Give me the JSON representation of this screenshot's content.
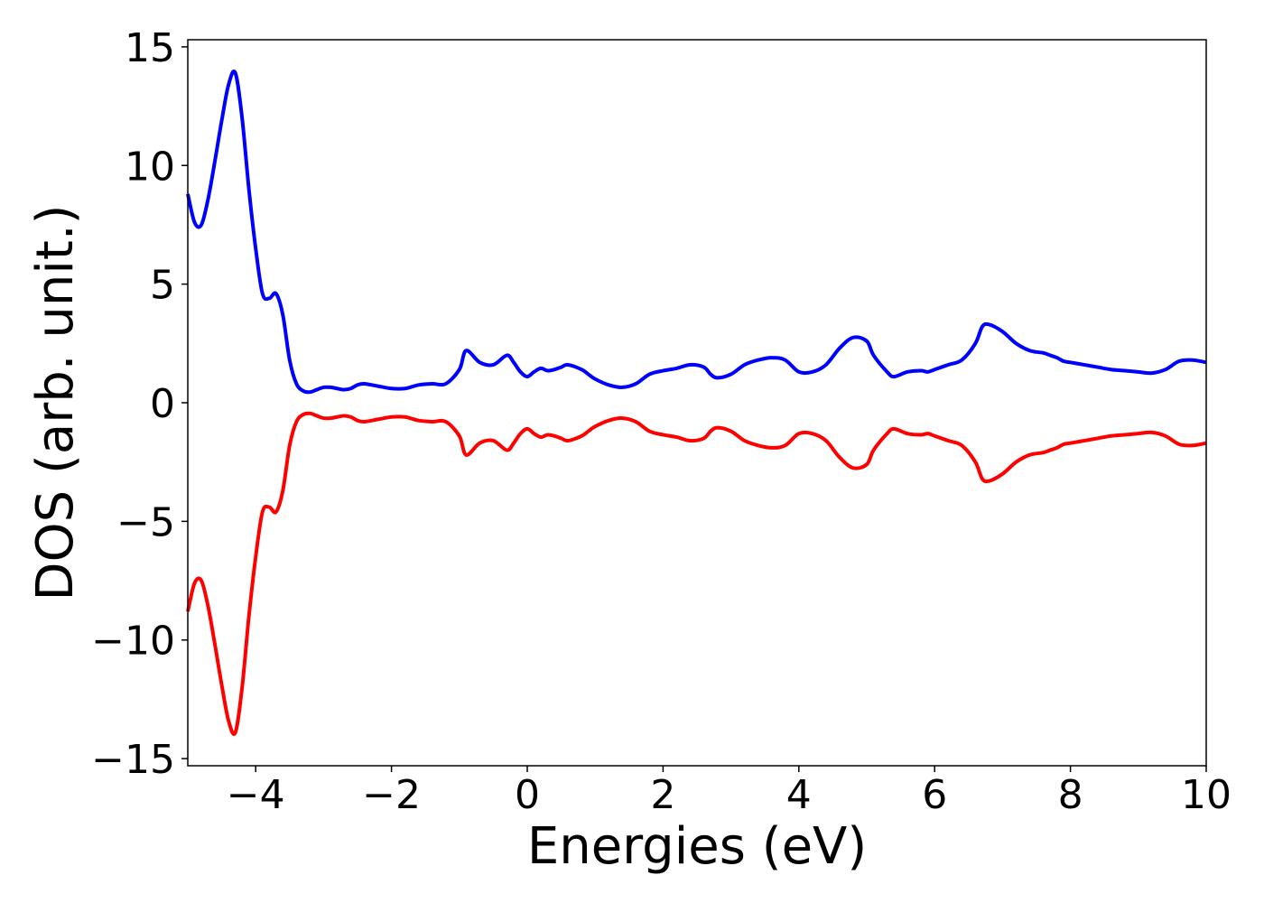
{
  "chart_data": {
    "type": "line",
    "title": "",
    "xlabel": "Energies (eV)",
    "ylabel": "DOS (arb. unit.)",
    "xlim": [
      -5,
      10
    ],
    "ylim": [
      -15.3,
      15.3
    ],
    "grid": false,
    "legend": "none",
    "xticks": [
      -4,
      -2,
      0,
      2,
      4,
      6,
      8,
      10
    ],
    "xtick_labels": [
      "−4",
      "−2",
      "0",
      "2",
      "4",
      "6",
      "8",
      "10"
    ],
    "yticks": [
      15,
      10,
      5,
      0,
      -5,
      -10,
      -15
    ],
    "ytick_labels": [
      "15",
      "10",
      "5",
      "0",
      "−5",
      "−10",
      "−15"
    ],
    "series": [
      {
        "color": "#0000ff",
        "x": [
          -5.0,
          -4.9,
          -4.8,
          -4.7,
          -4.6,
          -4.5,
          -4.4,
          -4.3,
          -4.2,
          -4.1,
          -4.0,
          -3.9,
          -3.8,
          -3.7,
          -3.6,
          -3.5,
          -3.4,
          -3.3,
          -3.2,
          -3.1,
          -3.0,
          -2.9,
          -2.8,
          -2.7,
          -2.6,
          -2.5,
          -2.4,
          -2.2,
          -2.0,
          -1.8,
          -1.6,
          -1.4,
          -1.2,
          -1.0,
          -0.9,
          -0.7,
          -0.5,
          -0.3,
          -0.2,
          -0.1,
          0.0,
          0.1,
          0.2,
          0.3,
          0.4,
          0.5,
          0.6,
          0.8,
          0.9,
          1.0,
          1.2,
          1.4,
          1.6,
          1.8,
          2.0,
          2.2,
          2.4,
          2.6,
          2.7,
          2.8,
          3.0,
          3.2,
          3.4,
          3.6,
          3.8,
          4.0,
          4.2,
          4.4,
          4.6,
          4.8,
          5.0,
          5.1,
          5.3,
          5.4,
          5.6,
          5.8,
          5.9,
          6.0,
          6.2,
          6.4,
          6.6,
          6.7,
          6.8,
          7.0,
          7.2,
          7.4,
          7.6,
          7.7,
          7.8,
          7.9,
          8.0,
          8.2,
          8.4,
          8.6,
          8.8,
          9.0,
          9.2,
          9.4,
          9.6,
          9.8,
          10.0
        ],
        "values": [
          8.8,
          7.6,
          7.5,
          8.6,
          10.2,
          11.9,
          13.4,
          13.9,
          12.0,
          9.0,
          6.5,
          4.6,
          4.4,
          4.6,
          3.7,
          1.8,
          0.8,
          0.5,
          0.45,
          0.55,
          0.65,
          0.65,
          0.6,
          0.55,
          0.6,
          0.75,
          0.8,
          0.7,
          0.6,
          0.6,
          0.75,
          0.8,
          0.8,
          1.4,
          2.2,
          1.7,
          1.6,
          2.0,
          1.7,
          1.3,
          1.1,
          1.3,
          1.45,
          1.35,
          1.4,
          1.5,
          1.6,
          1.4,
          1.2,
          1.0,
          0.75,
          0.65,
          0.8,
          1.2,
          1.35,
          1.45,
          1.6,
          1.5,
          1.2,
          1.05,
          1.2,
          1.6,
          1.8,
          1.9,
          1.8,
          1.3,
          1.3,
          1.6,
          2.3,
          2.75,
          2.6,
          2.0,
          1.3,
          1.1,
          1.3,
          1.35,
          1.3,
          1.4,
          1.6,
          1.8,
          2.5,
          3.2,
          3.3,
          3.0,
          2.5,
          2.2,
          2.1,
          2.0,
          1.9,
          1.75,
          1.7,
          1.6,
          1.5,
          1.4,
          1.35,
          1.3,
          1.25,
          1.4,
          1.75,
          1.8,
          1.7
        ]
      },
      {
        "color": "#ff0000",
        "x": [
          -5.0,
          -4.9,
          -4.8,
          -4.7,
          -4.6,
          -4.5,
          -4.4,
          -4.3,
          -4.2,
          -4.1,
          -4.0,
          -3.9,
          -3.8,
          -3.7,
          -3.6,
          -3.5,
          -3.4,
          -3.3,
          -3.2,
          -3.1,
          -3.0,
          -2.9,
          -2.8,
          -2.7,
          -2.6,
          -2.5,
          -2.4,
          -2.2,
          -2.0,
          -1.8,
          -1.6,
          -1.4,
          -1.2,
          -1.0,
          -0.9,
          -0.7,
          -0.5,
          -0.3,
          -0.2,
          -0.1,
          0.0,
          0.1,
          0.2,
          0.3,
          0.4,
          0.5,
          0.6,
          0.8,
          0.9,
          1.0,
          1.2,
          1.4,
          1.6,
          1.8,
          2.0,
          2.2,
          2.4,
          2.6,
          2.7,
          2.8,
          3.0,
          3.2,
          3.4,
          3.6,
          3.8,
          4.0,
          4.2,
          4.4,
          4.6,
          4.8,
          5.0,
          5.1,
          5.3,
          5.4,
          5.6,
          5.8,
          5.9,
          6.0,
          6.2,
          6.4,
          6.6,
          6.7,
          6.8,
          7.0,
          7.2,
          7.4,
          7.6,
          7.7,
          7.8,
          7.9,
          8.0,
          8.2,
          8.4,
          8.6,
          8.8,
          9.0,
          9.2,
          9.4,
          9.6,
          9.8,
          10.0
        ],
        "values": [
          -8.8,
          -7.6,
          -7.5,
          -8.6,
          -10.2,
          -11.9,
          -13.4,
          -13.9,
          -12.0,
          -9.0,
          -6.5,
          -4.6,
          -4.4,
          -4.6,
          -3.7,
          -1.8,
          -0.8,
          -0.5,
          -0.45,
          -0.55,
          -0.65,
          -0.65,
          -0.6,
          -0.55,
          -0.6,
          -0.75,
          -0.8,
          -0.7,
          -0.6,
          -0.6,
          -0.75,
          -0.8,
          -0.8,
          -1.4,
          -2.2,
          -1.7,
          -1.6,
          -2.0,
          -1.7,
          -1.3,
          -1.1,
          -1.3,
          -1.45,
          -1.35,
          -1.4,
          -1.5,
          -1.6,
          -1.4,
          -1.2,
          -1.0,
          -0.75,
          -0.65,
          -0.8,
          -1.2,
          -1.35,
          -1.45,
          -1.6,
          -1.5,
          -1.2,
          -1.05,
          -1.2,
          -1.6,
          -1.8,
          -1.9,
          -1.8,
          -1.3,
          -1.3,
          -1.6,
          -2.3,
          -2.75,
          -2.6,
          -2.0,
          -1.3,
          -1.1,
          -1.3,
          -1.35,
          -1.3,
          -1.4,
          -1.6,
          -1.8,
          -2.5,
          -3.2,
          -3.3,
          -3.0,
          -2.5,
          -2.2,
          -2.1,
          -2.0,
          -1.9,
          -1.75,
          -1.7,
          -1.6,
          -1.5,
          -1.4,
          -1.35,
          -1.3,
          -1.25,
          -1.4,
          -1.75,
          -1.8,
          -1.7
        ]
      }
    ]
  }
}
